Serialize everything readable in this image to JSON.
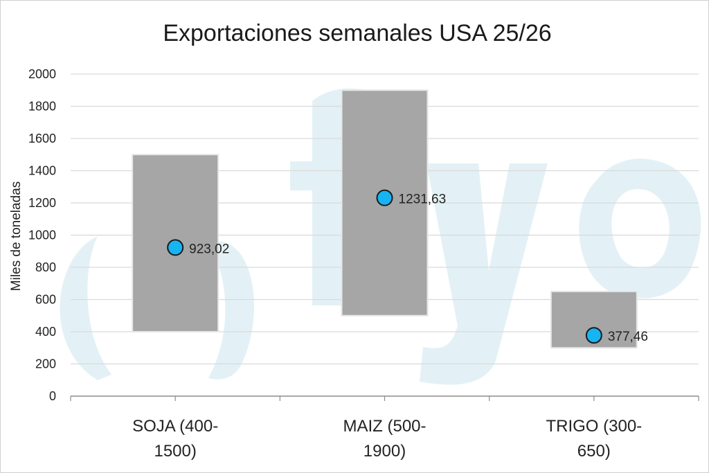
{
  "chart_data": {
    "type": "floating-bar-with-points",
    "title": "Exportaciones semanales USA 25/26",
    "xlabel": "",
    "ylabel": "Miles de toneladas",
    "ylim": [
      0,
      2000
    ],
    "yticks": [
      0,
      200,
      400,
      600,
      800,
      1000,
      1200,
      1400,
      1600,
      1800,
      2000
    ],
    "grid": true,
    "categories": [
      {
        "line1": "SOJA (400-",
        "line2": "1500)",
        "low": 400,
        "high": 1500,
        "point": 923.02,
        "point_label": "923,02"
      },
      {
        "line1": "MAIZ (500-",
        "line2": "1900)",
        "low": 500,
        "high": 1900,
        "point": 1231.63,
        "point_label": "1231,63"
      },
      {
        "line1": "TRIGO (300-",
        "line2": "650)",
        "low": 300,
        "high": 650,
        "point": 377.46,
        "point_label": "377,46"
      }
    ],
    "colors": {
      "bar": "#a6a6a6",
      "bar_edge": "#e6e6e6",
      "point": "#16b4f2",
      "point_edge": "#1a1a1a",
      "grid": "#d9d9d9",
      "axis": "#8c8c8c"
    }
  }
}
